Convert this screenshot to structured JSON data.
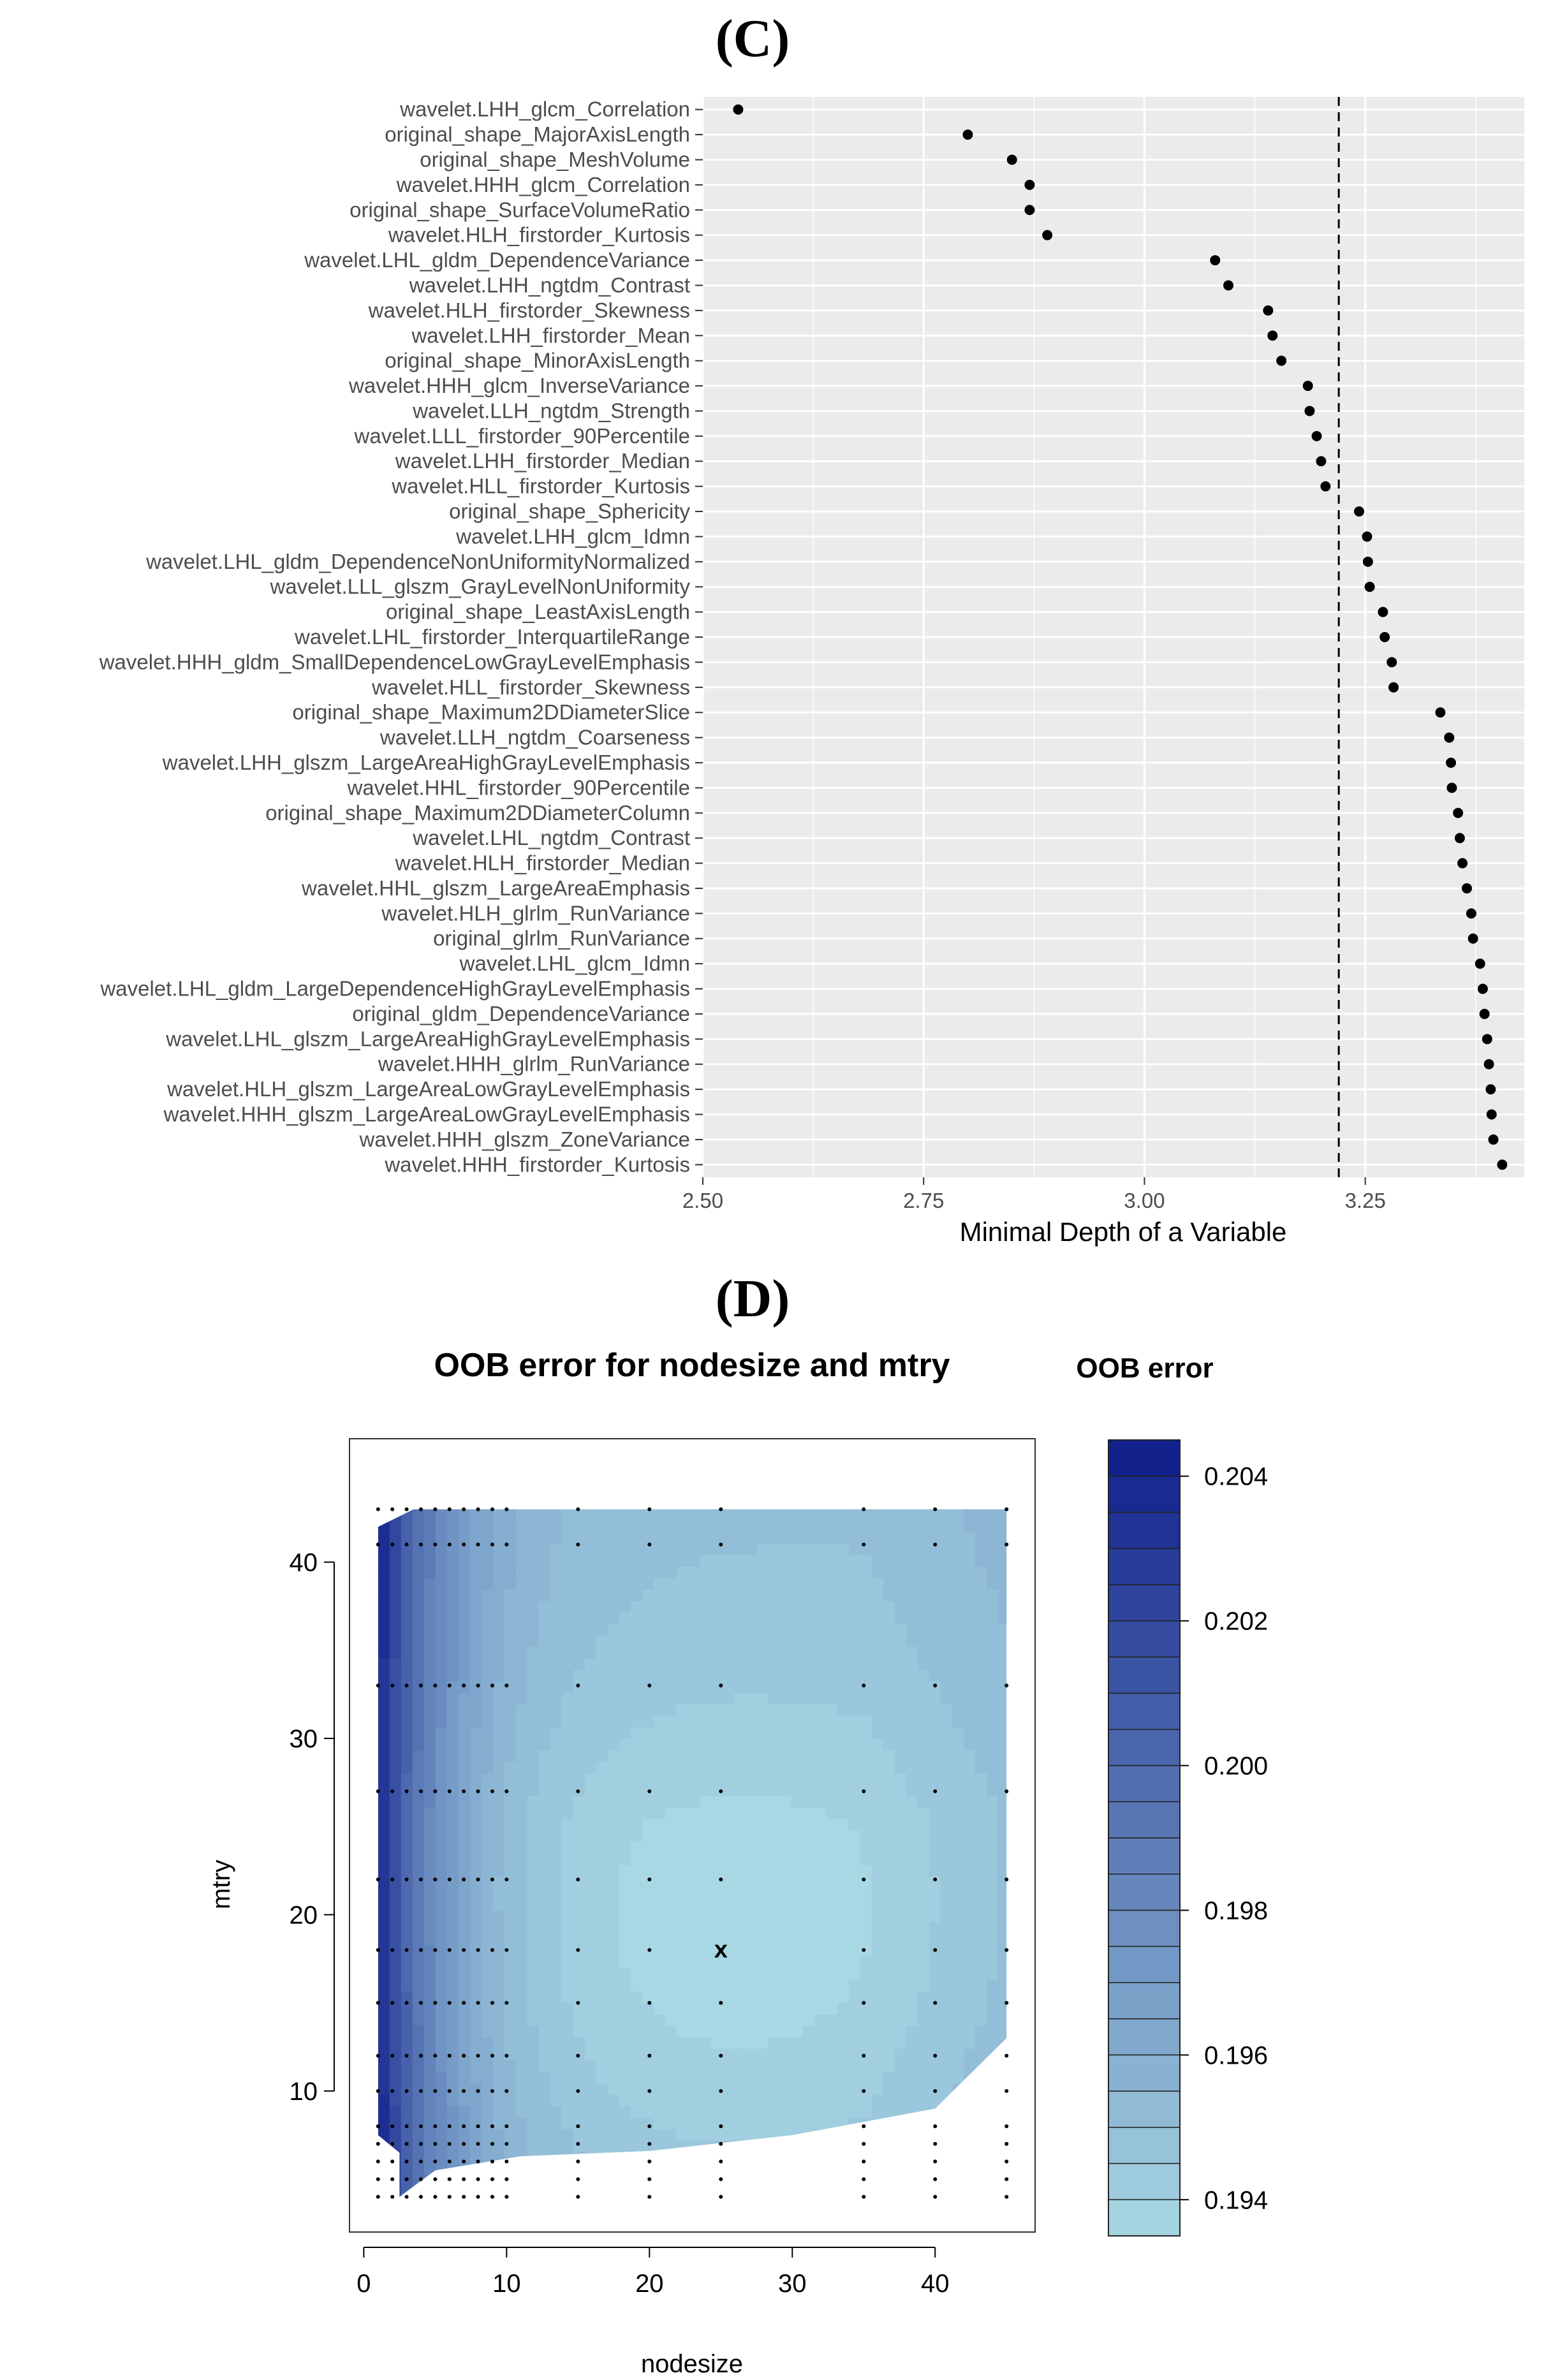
{
  "panels": {
    "c_label": "(C)",
    "d_label": "(D)"
  },
  "chart_data": [
    {
      "type": "scatter",
      "title": "",
      "xlabel": "Minimal Depth of a Variable",
      "ylabel": "",
      "xlim": [
        2.5,
        3.43
      ],
      "xticks": [
        "2.50",
        "2.75",
        "3.00",
        "3.25"
      ],
      "xtick_values": [
        2.5,
        2.75,
        3.0,
        3.25
      ],
      "threshold_line": 3.22,
      "background": "#ebebeb",
      "point_color": "#000000",
      "categories": [
        "wavelet.LHH_glcm_Correlation",
        "original_shape_MajorAxisLength",
        "original_shape_MeshVolume",
        "wavelet.HHH_glcm_Correlation",
        "original_shape_SurfaceVolumeRatio",
        "wavelet.HLH_firstorder_Kurtosis",
        "wavelet.LHL_gldm_DependenceVariance",
        "wavelet.LHH_ngtdm_Contrast",
        "wavelet.HLH_firstorder_Skewness",
        "wavelet.LHH_firstorder_Mean",
        "original_shape_MinorAxisLength",
        "wavelet.HHH_glcm_InverseVariance",
        "wavelet.LLH_ngtdm_Strength",
        "wavelet.LLL_firstorder_90Percentile",
        "wavelet.LHH_firstorder_Median",
        "wavelet.HLL_firstorder_Kurtosis",
        "original_shape_Sphericity",
        "wavelet.LHH_glcm_Idmn",
        "wavelet.LHL_gldm_DependenceNonUniformityNormalized",
        "wavelet.LLL_glszm_GrayLevelNonUniformity",
        "original_shape_LeastAxisLength",
        "wavelet.LHL_firstorder_InterquartileRange",
        "wavelet.HHH_gldm_SmallDependenceLowGrayLevelEmphasis",
        "wavelet.HLL_firstorder_Skewness",
        "original_shape_Maximum2DDiameterSlice",
        "wavelet.LLH_ngtdm_Coarseness",
        "wavelet.LHH_glszm_LargeAreaHighGrayLevelEmphasis",
        "wavelet.HHL_firstorder_90Percentile",
        "original_shape_Maximum2DDiameterColumn",
        "wavelet.LHL_ngtdm_Contrast",
        "wavelet.HLH_firstorder_Median",
        "wavelet.HHL_glszm_LargeAreaEmphasis",
        "wavelet.HLH_glrlm_RunVariance",
        "original_glrlm_RunVariance",
        "wavelet.LHL_glcm_Idmn",
        "wavelet.LHL_gldm_LargeDependenceHighGrayLevelEmphasis",
        "original_gldm_DependenceVariance",
        "wavelet.LHL_glszm_LargeAreaHighGrayLevelEmphasis",
        "wavelet.HHH_glrlm_RunVariance",
        "wavelet.HLH_glszm_LargeAreaLowGrayLevelEmphasis",
        "wavelet.HHH_glszm_LargeAreaLowGrayLevelEmphasis",
        "wavelet.HHH_glszm_ZoneVariance",
        "wavelet.HHH_firstorder_Kurtosis"
      ],
      "values": [
        2.54,
        2.8,
        2.85,
        2.87,
        2.87,
        2.89,
        3.08,
        3.095,
        3.14,
        3.145,
        3.155,
        3.185,
        3.187,
        3.195,
        3.2,
        3.205,
        3.243,
        3.252,
        3.253,
        3.255,
        3.27,
        3.272,
        3.28,
        3.282,
        3.335,
        3.345,
        3.347,
        3.348,
        3.355,
        3.357,
        3.36,
        3.365,
        3.37,
        3.372,
        3.38,
        3.383,
        3.385,
        3.388,
        3.39,
        3.392,
        3.393,
        3.395,
        3.405
      ]
    },
    {
      "type": "heatmap",
      "title": "OOB error for nodesize and mtry",
      "xlabel": "nodesize",
      "ylabel": "mtry",
      "xlim": [
        -1,
        47
      ],
      "ylim": [
        2,
        47
      ],
      "xticks": [
        "0",
        "10",
        "20",
        "30",
        "40"
      ],
      "xtick_values": [
        0,
        10,
        20,
        30,
        40
      ],
      "yticks": [
        "10",
        "20",
        "30",
        "40"
      ],
      "ytick_values": [
        10,
        20,
        30,
        40
      ],
      "legend_title": "OOB error",
      "legend_labels": [
        "0.204",
        "0.202",
        "0.200",
        "0.198",
        "0.196",
        "0.194"
      ],
      "legend_values": [
        0.204,
        0.202,
        0.2,
        0.198,
        0.196,
        0.194
      ],
      "legend_range": [
        0.1935,
        0.2045
      ],
      "color_low": "#a8d8e3",
      "color_high": "#0f1d8a",
      "nodesize_grid": [
        1,
        2,
        3,
        4,
        5,
        6,
        7,
        8,
        9,
        10,
        15,
        20,
        25,
        35,
        40,
        45
      ],
      "mtry_grid": [
        4,
        5,
        6,
        7,
        8,
        10,
        12,
        15,
        18,
        22,
        27,
        33,
        41,
        43
      ],
      "optimum_marker": "x",
      "optimum": {
        "nodesize": 25,
        "mtry": 18
      }
    }
  ]
}
